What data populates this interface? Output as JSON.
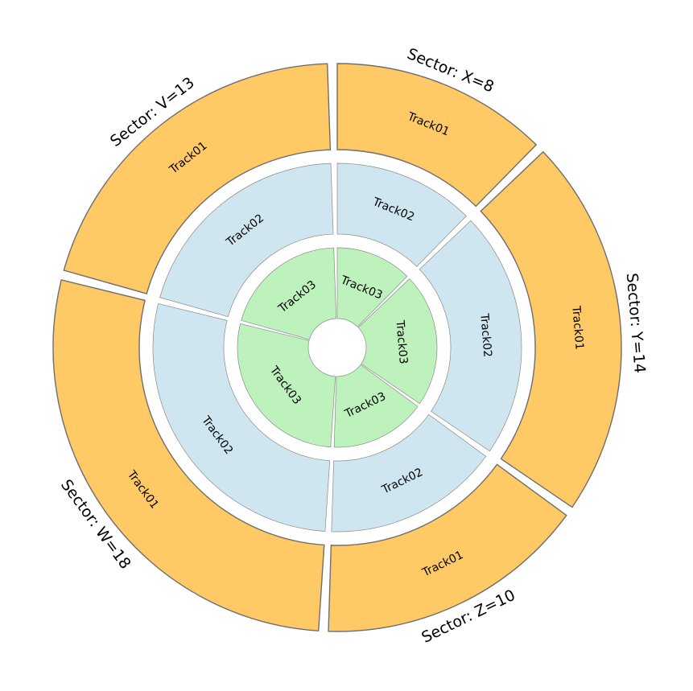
{
  "chart_data": {
    "type": "circos",
    "sectors": [
      {
        "name": "X",
        "size": 8,
        "label": "Sector: X=8"
      },
      {
        "name": "Y",
        "size": 14,
        "label": "Sector: Y=14"
      },
      {
        "name": "Z",
        "size": 10,
        "label": "Sector: Z=10"
      },
      {
        "name": "W",
        "size": 18,
        "label": "Sector: W=18"
      },
      {
        "name": "V",
        "size": 13,
        "label": "Sector: V=13"
      }
    ],
    "tracks": [
      {
        "name": "Track01",
        "color": "#FFC966"
      },
      {
        "name": "Track02",
        "color": "#CFE6F0"
      },
      {
        "name": "Track03",
        "color": "#BDF2BD"
      }
    ],
    "edge_color": "#6E6E6E"
  }
}
